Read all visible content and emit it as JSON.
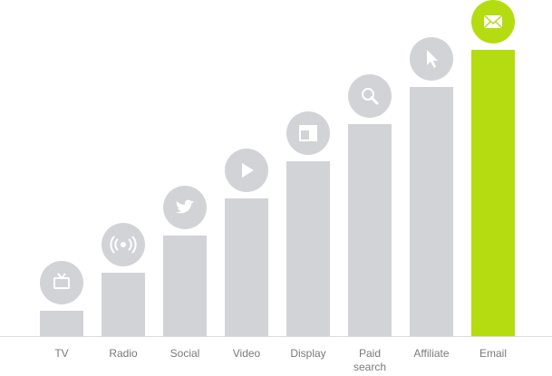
{
  "chart_data": {
    "type": "bar",
    "categories": [
      "TV",
      "Radio",
      "Social",
      "Video",
      "Display",
      "Paid search",
      "Affiliate",
      "Email"
    ],
    "values": [
      28,
      70,
      111,
      152,
      193,
      234,
      275,
      316
    ],
    "colors": [
      "#d1d3d6",
      "#d1d3d6",
      "#d1d3d6",
      "#d1d3d6",
      "#d1d3d6",
      "#d1d3d6",
      "#d1d3d6",
      "#b5dc10"
    ],
    "ylim": [
      0,
      316
    ]
  }
}
